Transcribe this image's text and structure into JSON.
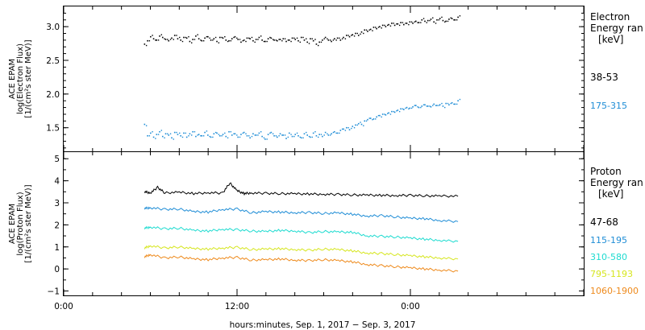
{
  "chart_data": [
    {
      "type": "scatter",
      "ylabel": [
        "ACE EPAM",
        "log(Electron Flux)",
        "[1/(cm²s ster MeV)]"
      ],
      "ylim": [
        1.15,
        3.3
      ],
      "yticks": [
        1.5,
        2.0,
        2.5,
        3.0
      ],
      "ytick_labels": [
        "1.5",
        "2.0",
        "2.5",
        "3.0"
      ],
      "legend_title": [
        "Electron",
        "Energy ran",
        "[keV]"
      ],
      "x_range_hours": [
        0,
        48
      ],
      "series": [
        {
          "name": "38-53",
          "color": "#000000",
          "x": [
            6,
            7,
            8,
            9,
            10,
            11,
            12,
            13,
            14,
            15,
            16,
            17,
            18,
            19,
            20,
            21,
            22,
            23,
            24,
            25,
            26,
            27,
            28,
            29,
            30,
            31,
            32,
            33,
            34,
            35,
            36,
            37,
            38,
            39,
            40,
            41,
            42,
            43,
            44,
            45,
            46,
            47,
            48,
            49,
            50,
            51,
            52,
            53,
            54,
            55,
            56,
            57,
            58,
            59,
            60,
            61,
            62,
            63,
            64,
            65,
            66,
            67,
            68,
            69,
            70,
            71,
            72,
            73,
            74,
            75,
            76,
            77,
            78,
            79,
            80,
            81,
            82,
            83,
            84,
            85,
            86,
            87,
            88,
            89,
            90,
            91,
            92,
            93,
            94,
            95,
            96,
            97,
            98,
            99,
            100,
            101,
            102,
            103,
            104,
            105,
            106,
            107,
            108,
            109,
            110
          ],
          "y": [
            2.74,
            2.79,
            2.85,
            2.82,
            2.8,
            2.86,
            2.84,
            2.81,
            2.79,
            2.83,
            2.87,
            2.82,
            2.8,
            2.84,
            2.83,
            2.78,
            2.81,
            2.86,
            2.82,
            2.79,
            2.83,
            2.85,
            2.8,
            2.82,
            2.78,
            2.84,
            2.83,
            2.8,
            2.79,
            2.82,
            2.85,
            2.81,
            2.77,
            2.8,
            2.83,
            2.82,
            2.79,
            2.81,
            2.84,
            2.8,
            2.78,
            2.82,
            2.83,
            2.8,
            2.79,
            2.81,
            2.82,
            2.78,
            2.8,
            2.83,
            2.81,
            2.79,
            2.84,
            2.8,
            2.77,
            2.82,
            2.79,
            2.74,
            2.77,
            2.8,
            2.84,
            2.8,
            2.78,
            2.82,
            2.83,
            2.8,
            2.84,
            2.87,
            2.85,
            2.88,
            2.9,
            2.87,
            2.92,
            2.95,
            2.93,
            2.96,
            2.99,
            2.97,
            3.0,
            3.02,
            3.0,
            3.03,
            3.05,
            3.02,
            3.04,
            3.06,
            3.03,
            3.05,
            3.07,
            3.05,
            3.08,
            3.06,
            3.1,
            3.08,
            3.09,
            3.11,
            3.07,
            3.1,
            3.12,
            3.09,
            3.08,
            3.11,
            3.12,
            3.1,
            3.14
          ]
        },
        {
          "name": "175-315",
          "color": "#1f8dd6",
          "x": [
            6,
            7,
            8,
            9,
            10,
            11,
            12,
            13,
            14,
            15,
            16,
            17,
            18,
            19,
            20,
            21,
            22,
            23,
            24,
            25,
            26,
            27,
            28,
            29,
            30,
            31,
            32,
            33,
            34,
            35,
            36,
            37,
            38,
            39,
            40,
            41,
            42,
            43,
            44,
            45,
            46,
            47,
            48,
            49,
            50,
            51,
            52,
            53,
            54,
            55,
            56,
            57,
            58,
            59,
            60,
            61,
            62,
            63,
            64,
            65,
            66,
            67,
            68,
            69,
            70,
            71,
            72,
            73,
            74,
            75,
            76,
            77,
            78,
            79,
            80,
            81,
            82,
            83,
            84,
            85,
            86,
            87,
            88,
            89,
            90,
            91,
            92,
            93,
            94,
            95,
            96,
            97,
            98,
            99,
            100,
            101,
            102,
            103,
            104,
            105,
            106,
            107,
            108,
            109,
            110
          ],
          "y": [
            1.55,
            1.38,
            1.42,
            1.36,
            1.4,
            1.44,
            1.37,
            1.41,
            1.39,
            1.35,
            1.43,
            1.4,
            1.38,
            1.42,
            1.36,
            1.41,
            1.44,
            1.37,
            1.4,
            1.38,
            1.43,
            1.39,
            1.36,
            1.41,
            1.42,
            1.38,
            1.4,
            1.37,
            1.44,
            1.39,
            1.41,
            1.36,
            1.4,
            1.43,
            1.38,
            1.35,
            1.41,
            1.39,
            1.42,
            1.37,
            1.33,
            1.4,
            1.43,
            1.38,
            1.36,
            1.41,
            1.39,
            1.34,
            1.42,
            1.37,
            1.4,
            1.38,
            1.35,
            1.41,
            1.39,
            1.36,
            1.42,
            1.38,
            1.4,
            1.37,
            1.43,
            1.39,
            1.41,
            1.44,
            1.42,
            1.46,
            1.48,
            1.5,
            1.47,
            1.52,
            1.54,
            1.56,
            1.55,
            1.6,
            1.62,
            1.64,
            1.63,
            1.66,
            1.68,
            1.7,
            1.69,
            1.72,
            1.74,
            1.73,
            1.76,
            1.78,
            1.77,
            1.8,
            1.79,
            1.81,
            1.83,
            1.8,
            1.82,
            1.84,
            1.82,
            1.81,
            1.85,
            1.83,
            1.84,
            1.82,
            1.86,
            1.84,
            1.87,
            1.85,
            1.9
          ]
        }
      ]
    },
    {
      "type": "line",
      "ylabel": [
        "ACE EPAM",
        "log(Proton Flux)",
        "[1/(cm²s ster MeV)]"
      ],
      "ylim": [
        -1.2,
        5.3
      ],
      "yticks": [
        -1,
        0,
        1,
        2,
        3,
        4,
        5
      ],
      "ytick_labels": [
        "−1",
        "0",
        "1",
        "2",
        "3",
        "4",
        "5"
      ],
      "xlabel": "hours:minutes, Sep.  1, 2017 − Sep.  3, 2017",
      "xticks": [
        0,
        12,
        24
      ],
      "xtick_labels": [
        "0:00",
        "12:00",
        "0:00"
      ],
      "xlim_hours": [
        0,
        36
      ],
      "legend_title": [
        "Proton",
        "Energy ran",
        "[keV]"
      ],
      "series": [
        {
          "name": "47-68",
          "color": "#000000",
          "x": [
            5.6,
            6,
            6.5,
            7,
            8,
            9,
            10,
            11,
            11.5,
            12,
            12.5,
            13,
            14,
            15,
            16,
            17,
            18,
            19,
            20,
            21,
            22,
            23,
            24,
            25,
            26,
            27.3
          ],
          "y": [
            3.5,
            3.45,
            3.7,
            3.45,
            3.48,
            3.42,
            3.46,
            3.44,
            3.9,
            3.55,
            3.42,
            3.45,
            3.43,
            3.42,
            3.41,
            3.4,
            3.39,
            3.38,
            3.36,
            3.35,
            3.34,
            3.33,
            3.34,
            3.32,
            3.31,
            3.3
          ]
        },
        {
          "name": "115-195",
          "color": "#1f8dd6",
          "x": [
            5.6,
            6,
            7,
            8,
            9,
            10,
            11,
            12,
            13,
            14,
            15,
            16,
            17,
            18,
            19,
            20,
            21,
            22,
            23,
            24,
            25,
            26,
            27.3
          ],
          "y": [
            2.75,
            2.78,
            2.7,
            2.72,
            2.6,
            2.58,
            2.7,
            2.72,
            2.55,
            2.6,
            2.58,
            2.55,
            2.56,
            2.52,
            2.54,
            2.48,
            2.4,
            2.42,
            2.36,
            2.3,
            2.28,
            2.2,
            2.15
          ]
        },
        {
          "name": "310-580",
          "color": "#1edbd0",
          "x": [
            5.6,
            6,
            7,
            8,
            9,
            10,
            11,
            12,
            13,
            14,
            15,
            16,
            17,
            18,
            19,
            20,
            21,
            22,
            23,
            24,
            25,
            26,
            27.3
          ],
          "y": [
            1.85,
            1.9,
            1.82,
            1.85,
            1.75,
            1.72,
            1.8,
            1.78,
            1.72,
            1.7,
            1.75,
            1.72,
            1.65,
            1.7,
            1.68,
            1.66,
            1.5,
            1.48,
            1.45,
            1.4,
            1.35,
            1.3,
            1.25
          ]
        },
        {
          "name": "795-1193",
          "color": "#d6e61e",
          "x": [
            5.6,
            6,
            7,
            8,
            9,
            10,
            11,
            12,
            13,
            14,
            15,
            16,
            17,
            18,
            19,
            20,
            21,
            22,
            23,
            24,
            25,
            26,
            27.3
          ],
          "y": [
            0.95,
            1.05,
            0.95,
            1.0,
            0.92,
            0.9,
            0.95,
            0.98,
            0.88,
            0.9,
            0.92,
            0.88,
            0.85,
            0.9,
            0.88,
            0.82,
            0.72,
            0.7,
            0.65,
            0.6,
            0.55,
            0.5,
            0.45
          ]
        },
        {
          "name": "1060-1900",
          "color": "#ee8a1c",
          "x": [
            5.6,
            6,
            7,
            8,
            9,
            10,
            11,
            12,
            13,
            14,
            15,
            16,
            17,
            18,
            19,
            20,
            21,
            22,
            23,
            24,
            25,
            26,
            27.3
          ],
          "y": [
            0.55,
            0.65,
            0.5,
            0.55,
            0.45,
            0.42,
            0.5,
            0.52,
            0.4,
            0.42,
            0.45,
            0.4,
            0.38,
            0.42,
            0.38,
            0.32,
            0.2,
            0.15,
            0.1,
            0.05,
            0.0,
            -0.05,
            -0.1
          ]
        }
      ]
    }
  ]
}
